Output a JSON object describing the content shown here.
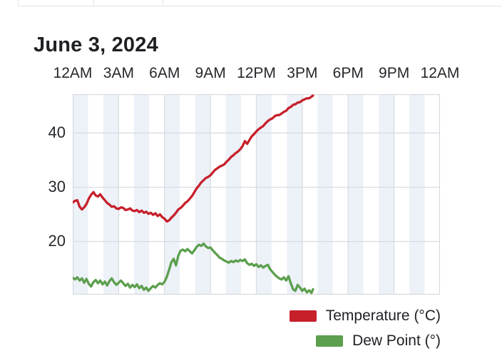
{
  "page": {
    "title": "June 3, 2024"
  },
  "chart_data": {
    "type": "line",
    "title": "June 3, 2024",
    "x_axis": {
      "position": "top",
      "tick_labels": [
        "12AM",
        "3AM",
        "6AM",
        "9AM",
        "12PM",
        "3PM",
        "6PM",
        "9PM",
        "12AM"
      ],
      "hours_domain": [
        0,
        24
      ],
      "gridline_every_hours": 3
    },
    "y_axis": {
      "tick_values": [
        40,
        30,
        20
      ],
      "domain": [
        10.2,
        47.16
      ]
    },
    "background": {
      "band_hours": 1,
      "band_color": "#edf1f8",
      "alt_color": "#ffffff"
    },
    "grid": {
      "show": true,
      "line_color": "#d9dce1",
      "border_color": "#d6dadd"
    },
    "legend_position": "bottom-right",
    "series": [
      {
        "name": "Temperature (°C)",
        "color": "#c6202b",
        "points": [
          [
            0,
            27.2
          ],
          [
            0.15,
            27.5
          ],
          [
            0.3,
            27.6
          ],
          [
            0.45,
            26.4
          ],
          [
            0.6,
            25.9
          ],
          [
            0.75,
            26.3
          ],
          [
            0.9,
            26.9
          ],
          [
            1.05,
            27.9
          ],
          [
            1.2,
            28.6
          ],
          [
            1.35,
            29.1
          ],
          [
            1.5,
            28.5
          ],
          [
            1.65,
            28.3
          ],
          [
            1.8,
            28.7
          ],
          [
            1.95,
            28.1
          ],
          [
            2.1,
            27.6
          ],
          [
            2.25,
            27.1
          ],
          [
            2.4,
            26.8
          ],
          [
            2.55,
            26.4
          ],
          [
            2.7,
            26.5
          ],
          [
            2.85,
            26.1
          ],
          [
            3,
            26.0
          ],
          [
            3.15,
            26.3
          ],
          [
            3.3,
            26.2
          ],
          [
            3.45,
            25.8
          ],
          [
            3.6,
            25.9
          ],
          [
            3.75,
            26.1
          ],
          [
            3.9,
            25.7
          ],
          [
            4.05,
            25.6
          ],
          [
            4.2,
            25.8
          ],
          [
            4.35,
            25.4
          ],
          [
            4.5,
            25.7
          ],
          [
            4.65,
            25.3
          ],
          [
            4.8,
            25.5
          ],
          [
            4.95,
            25.1
          ],
          [
            5.1,
            25.3
          ],
          [
            5.25,
            24.9
          ],
          [
            5.4,
            25.2
          ],
          [
            5.55,
            24.7
          ],
          [
            5.7,
            25.0
          ],
          [
            5.85,
            24.5
          ],
          [
            6,
            24.2
          ],
          [
            6.15,
            23.7
          ],
          [
            6.3,
            23.9
          ],
          [
            6.45,
            24.4
          ],
          [
            6.6,
            24.8
          ],
          [
            6.75,
            25.3
          ],
          [
            6.9,
            25.9
          ],
          [
            7.05,
            26.2
          ],
          [
            7.2,
            26.6
          ],
          [
            7.35,
            27.1
          ],
          [
            7.5,
            27.4
          ],
          [
            7.65,
            27.9
          ],
          [
            7.8,
            28.4
          ],
          [
            7.95,
            29.1
          ],
          [
            8.1,
            29.8
          ],
          [
            8.25,
            30.3
          ],
          [
            8.4,
            30.9
          ],
          [
            8.55,
            31.3
          ],
          [
            8.7,
            31.7
          ],
          [
            8.85,
            31.9
          ],
          [
            9,
            32.2
          ],
          [
            9.15,
            32.7
          ],
          [
            9.3,
            33.2
          ],
          [
            9.45,
            33.5
          ],
          [
            9.6,
            33.8
          ],
          [
            9.75,
            34.0
          ],
          [
            9.9,
            34.2
          ],
          [
            10.05,
            34.7
          ],
          [
            10.2,
            35.1
          ],
          [
            10.35,
            35.6
          ],
          [
            10.5,
            35.9
          ],
          [
            10.65,
            36.3
          ],
          [
            10.8,
            36.6
          ],
          [
            10.95,
            37.0
          ],
          [
            11.1,
            37.6
          ],
          [
            11.25,
            38.5
          ],
          [
            11.4,
            38.0
          ],
          [
            11.55,
            38.7
          ],
          [
            11.7,
            39.4
          ],
          [
            11.85,
            39.8
          ],
          [
            12,
            40.3
          ],
          [
            12.15,
            40.7
          ],
          [
            12.3,
            41.0
          ],
          [
            12.45,
            41.3
          ],
          [
            12.6,
            41.8
          ],
          [
            12.75,
            42.2
          ],
          [
            12.9,
            42.5
          ],
          [
            13.05,
            42.7
          ],
          [
            13.2,
            43.1
          ],
          [
            13.35,
            43.3
          ],
          [
            13.5,
            43.3
          ],
          [
            13.65,
            43.6
          ],
          [
            13.8,
            43.9
          ],
          [
            13.95,
            44.1
          ],
          [
            14.1,
            44.6
          ],
          [
            14.25,
            44.8
          ],
          [
            14.4,
            45.2
          ],
          [
            14.55,
            45.3
          ],
          [
            14.7,
            45.6
          ],
          [
            14.85,
            45.7
          ],
          [
            15,
            46.0
          ],
          [
            15.15,
            46.2
          ],
          [
            15.3,
            46.4
          ],
          [
            15.45,
            46.4
          ],
          [
            15.6,
            46.7
          ],
          [
            15.7,
            46.9
          ]
        ]
      },
      {
        "name": "Dew Point (°)",
        "color": "#5c9f4e",
        "points": [
          [
            0,
            13.3
          ],
          [
            0.15,
            13.0
          ],
          [
            0.3,
            13.4
          ],
          [
            0.45,
            12.8
          ],
          [
            0.6,
            13.2
          ],
          [
            0.75,
            12.4
          ],
          [
            0.9,
            13.1
          ],
          [
            1.05,
            12.2
          ],
          [
            1.2,
            11.7
          ],
          [
            1.35,
            12.5
          ],
          [
            1.5,
            12.9
          ],
          [
            1.65,
            12.3
          ],
          [
            1.8,
            12.8
          ],
          [
            1.95,
            12.1
          ],
          [
            2.1,
            12.6
          ],
          [
            2.25,
            11.9
          ],
          [
            2.4,
            12.7
          ],
          [
            2.55,
            13.2
          ],
          [
            2.7,
            12.5
          ],
          [
            2.85,
            12.0
          ],
          [
            3,
            12.4
          ],
          [
            3.15,
            12.8
          ],
          [
            3.3,
            12.3
          ],
          [
            3.45,
            11.8
          ],
          [
            3.6,
            12.2
          ],
          [
            3.75,
            11.5
          ],
          [
            3.9,
            12.0
          ],
          [
            4.05,
            11.6
          ],
          [
            4.2,
            12.1
          ],
          [
            4.35,
            11.4
          ],
          [
            4.5,
            11.8
          ],
          [
            4.65,
            11.1
          ],
          [
            4.8,
            11.5
          ],
          [
            4.95,
            10.9
          ],
          [
            5.1,
            11.4
          ],
          [
            5.25,
            11.8
          ],
          [
            5.4,
            11.5
          ],
          [
            5.55,
            12.0
          ],
          [
            5.7,
            12.3
          ],
          [
            5.85,
            12.1
          ],
          [
            6,
            12.6
          ],
          [
            6.15,
            13.5
          ],
          [
            6.3,
            14.8
          ],
          [
            6.45,
            16.2
          ],
          [
            6.6,
            16.8
          ],
          [
            6.75,
            15.6
          ],
          [
            6.9,
            17.4
          ],
          [
            7.05,
            18.3
          ],
          [
            7.2,
            18.5
          ],
          [
            7.35,
            18.2
          ],
          [
            7.5,
            18.6
          ],
          [
            7.65,
            18.2
          ],
          [
            7.8,
            17.8
          ],
          [
            7.95,
            18.4
          ],
          [
            8.1,
            19.0
          ],
          [
            8.25,
            19.4
          ],
          [
            8.4,
            19.2
          ],
          [
            8.55,
            19.6
          ],
          [
            8.7,
            19.1
          ],
          [
            8.85,
            18.8
          ],
          [
            9,
            18.9
          ],
          [
            9.15,
            18.4
          ],
          [
            9.3,
            17.9
          ],
          [
            9.45,
            17.5
          ],
          [
            9.6,
            17.0
          ],
          [
            9.75,
            16.8
          ],
          [
            9.9,
            16.5
          ],
          [
            10.05,
            16.3
          ],
          [
            10.2,
            16.1
          ],
          [
            10.35,
            16.4
          ],
          [
            10.5,
            16.2
          ],
          [
            10.65,
            16.5
          ],
          [
            10.8,
            16.3
          ],
          [
            10.95,
            16.6
          ],
          [
            11.1,
            16.4
          ],
          [
            11.25,
            16.7
          ],
          [
            11.4,
            16.0
          ],
          [
            11.55,
            15.7
          ],
          [
            11.7,
            15.9
          ],
          [
            11.85,
            15.5
          ],
          [
            12,
            15.8
          ],
          [
            12.15,
            15.3
          ],
          [
            12.3,
            15.6
          ],
          [
            12.45,
            15.2
          ],
          [
            12.6,
            15.5
          ],
          [
            12.75,
            15.7
          ],
          [
            12.9,
            14.9
          ],
          [
            13.05,
            14.4
          ],
          [
            13.2,
            13.9
          ],
          [
            13.35,
            13.5
          ],
          [
            13.5,
            13.2
          ],
          [
            13.65,
            13.0
          ],
          [
            13.8,
            13.4
          ],
          [
            13.95,
            12.8
          ],
          [
            14.1,
            13.6
          ],
          [
            14.25,
            12.3
          ],
          [
            14.4,
            11.2
          ],
          [
            14.55,
            10.9
          ],
          [
            14.7,
            12.0
          ],
          [
            14.85,
            11.5
          ],
          [
            15,
            10.9
          ],
          [
            15.15,
            11.3
          ],
          [
            15.3,
            10.6
          ],
          [
            15.45,
            11.0
          ],
          [
            15.6,
            10.5
          ],
          [
            15.7,
            11.2
          ]
        ]
      }
    ]
  }
}
